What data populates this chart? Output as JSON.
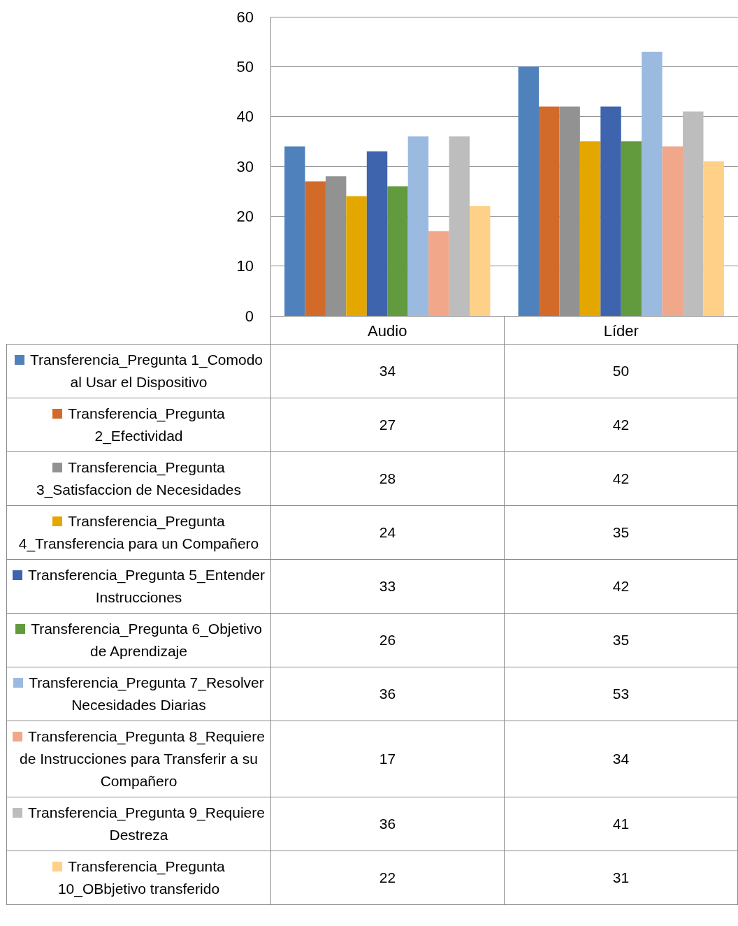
{
  "chart_data": {
    "type": "bar",
    "categories": [
      "Audio",
      "Líder"
    ],
    "series": [
      {
        "name": "Transferencia_Pregunta 1_Comodo al Usar el Dispositivo",
        "color": "#4f81bd",
        "values": [
          34,
          50
        ]
      },
      {
        "name": "Transferencia_Pregunta 2_Efectividad",
        "color": "#d26b2a",
        "values": [
          27,
          42
        ]
      },
      {
        "name": "Transferencia_Pregunta 3_Satisfaccion de Necesidades",
        "color": "#929292",
        "values": [
          28,
          42
        ]
      },
      {
        "name": "Transferencia_Pregunta 4_Transferencia para un Compañero",
        "color": "#e3a700",
        "values": [
          24,
          35
        ]
      },
      {
        "name": "Transferencia_Pregunta 5_Entender Instrucciones",
        "color": "#3e64ad",
        "values": [
          33,
          42
        ]
      },
      {
        "name": "Transferencia_Pregunta 6_Objetivo de Aprendizaje",
        "color": "#629a3e",
        "values": [
          26,
          35
        ]
      },
      {
        "name": "Transferencia_Pregunta 7_Resolver Necesidades Diarias",
        "color": "#9bbae0",
        "values": [
          36,
          53
        ]
      },
      {
        "name": "Transferencia_Pregunta 8_Requiere de Instrucciones para Transferir a su Compañero",
        "color": "#f0a78a",
        "values": [
          17,
          34
        ]
      },
      {
        "name": "Transferencia_Pregunta 9_Requiere Destreza",
        "color": "#bdbdbd",
        "values": [
          36,
          41
        ]
      },
      {
        "name": "Transferencia_Pregunta 10_OBbjetivo transferido",
        "color": "#ffd088",
        "values": [
          22,
          31
        ]
      }
    ],
    "ylim": [
      0,
      60
    ],
    "yticks": [
      0,
      10,
      20,
      30,
      40,
      50,
      60
    ],
    "grid": "y",
    "legend": "bottom",
    "data_labels": true
  }
}
